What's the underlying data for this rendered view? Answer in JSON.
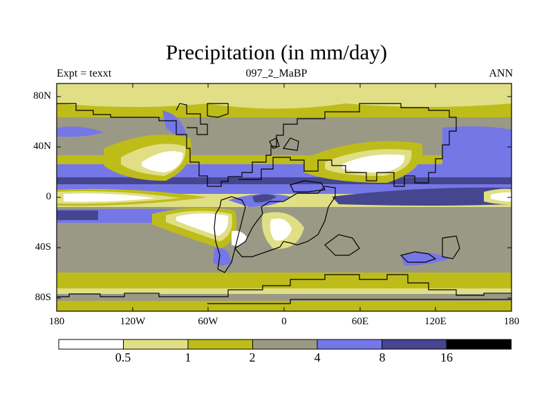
{
  "title": "Precipitation (in mm/day)",
  "subtitle_left": "Expt = texxt",
  "subtitle_center": "097_2_MaBP",
  "subtitle_right": "ANN",
  "lat_ticks": [
    "80N",
    "40N",
    "0",
    "40S",
    "80S"
  ],
  "lon_ticks": [
    "180",
    "120W",
    "60W",
    "0",
    "60E",
    "120E",
    "180"
  ],
  "colorbar": {
    "labels": [
      "0.5",
      "1",
      "2",
      "4",
      "8",
      "16"
    ],
    "colors": [
      "#ffffff",
      "#e0df86",
      "#bebc19",
      "#9a9986",
      "#7577e6",
      "#45468f",
      "#000000"
    ]
  },
  "colors": {
    "white": "#ffffff",
    "light_yellow": "#e0df86",
    "olive": "#bebc19",
    "gray": "#9a9986",
    "blue": "#7577e6",
    "dark_blue": "#45468f"
  }
}
